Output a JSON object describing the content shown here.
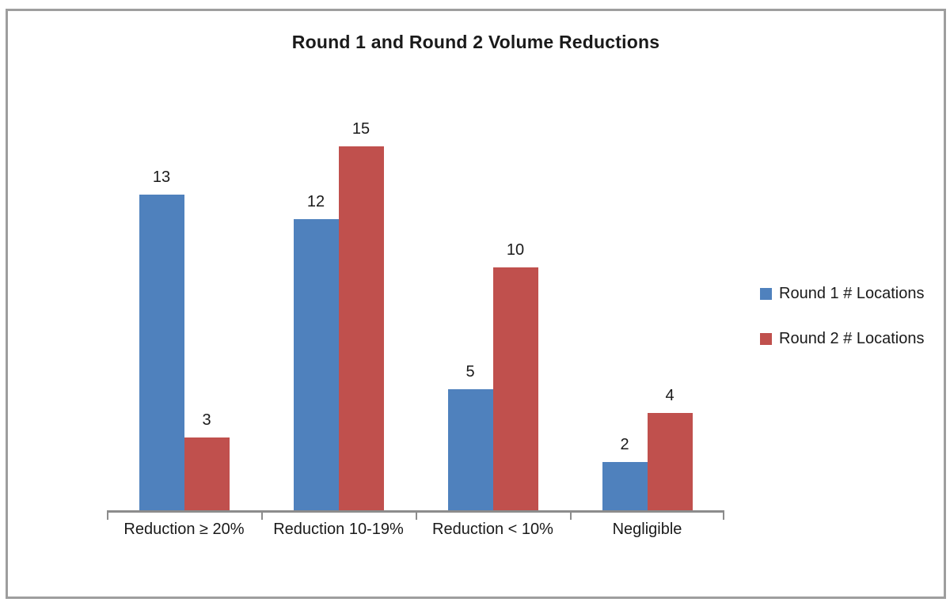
{
  "chart_data": {
    "type": "bar",
    "title": "Round 1 and Round 2 Volume Reductions",
    "categories": [
      "Reduction ≥ 20%",
      "Reduction 10-19%",
      "Reduction < 10%",
      "Negligible"
    ],
    "series": [
      {
        "name": "Round 1 # Locations",
        "color": "#4F81BD",
        "values": [
          13,
          12,
          5,
          2
        ]
      },
      {
        "name": "Round 2 # Locations",
        "color": "#C0504D",
        "values": [
          3,
          15,
          10,
          4
        ]
      }
    ],
    "xlabel": "",
    "ylabel": "",
    "ylim": [
      0,
      15
    ],
    "grid": false,
    "data_labels": true,
    "legend_position": "right",
    "axis_color": "#8c8c8c",
    "frame_color": "#9e9e9e",
    "text_color": "#1a1a1a"
  }
}
